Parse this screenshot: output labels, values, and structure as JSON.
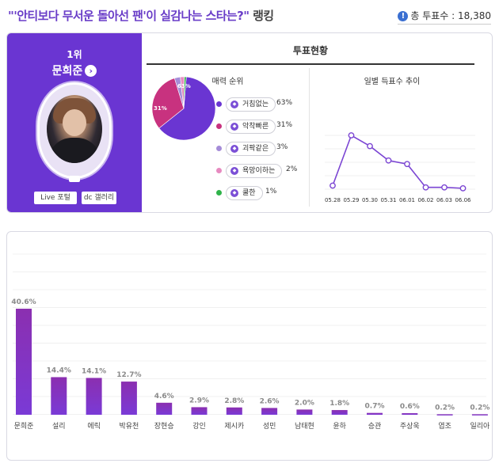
{
  "header": {
    "title_main": "\"'안티보다 무서운 돌아선 팬'이 실감나는 스타는?\"",
    "title_tail": "랭킹",
    "total_label": "총 투표수 : 18,380",
    "info_icon": "info-icon"
  },
  "winner": {
    "rank": "1위",
    "name": "문희준",
    "go_icon": "chevron-right-icon",
    "live_label": "Live 포털",
    "dc_label": "dc 갤러리"
  },
  "status": {
    "title": "투표현황",
    "charm_title": "매력 순위",
    "daily_title": "일별 득표수 추이"
  },
  "colors": {
    "purple": "#6a35d2",
    "pink": "#c8327f",
    "lavender": "#a58cd8",
    "lightpink": "#e78ac0",
    "green": "#2fb34a",
    "bar_top": "#8b2fb0",
    "bar_bottom": "#7a3ad6"
  },
  "chart_data": [
    {
      "type": "pie",
      "title": "매력 순위",
      "slices": [
        {
          "label": "거침없는",
          "value": 63,
          "pct_text": "63%",
          "color": "#6a35d2"
        },
        {
          "label": "악착빠른",
          "value": 31,
          "pct_text": "31%",
          "color": "#c8327f"
        },
        {
          "label": "괴팍같은",
          "value": 3,
          "pct_text": "3%",
          "color": "#a58cd8"
        },
        {
          "label": "욕망이하는",
          "value": 2,
          "pct_text": "2%",
          "color": "#e78ac0"
        },
        {
          "label": "쿨한",
          "value": 1,
          "pct_text": "1%",
          "color": "#2fb34a"
        }
      ],
      "inner_labels": [
        "31%",
        "63%"
      ]
    },
    {
      "type": "line",
      "title": "일별 득표수 추이",
      "x": [
        "05.28",
        "05.29",
        "05.30",
        "05.31",
        "06.01",
        "06.02",
        "06.03",
        "06.06"
      ],
      "y": [
        2,
        30,
        24,
        16,
        14,
        1,
        1,
        0.5
      ]
    },
    {
      "type": "bar",
      "categories": [
        "문희준",
        "설리",
        "에릭",
        "박유천",
        "장현승",
        "강인",
        "제시카",
        "성민",
        "남태현",
        "윤하",
        "승관",
        "주상욱",
        "엽조",
        "일리아"
      ],
      "values": [
        40.6,
        14.4,
        14.1,
        12.7,
        4.6,
        2.9,
        2.8,
        2.6,
        2.0,
        1.8,
        0.7,
        0.6,
        0.2,
        0.2
      ],
      "value_labels": [
        "40.6%",
        "14.4%",
        "14.1%",
        "12.7%",
        "4.6%",
        "2.9%",
        "2.8%",
        "2.6%",
        "2.0%",
        "1.8%",
        "0.7%",
        "0.6%",
        "0.2%",
        "0.2%"
      ],
      "ylim": [
        0,
        50
      ],
      "grid": true
    }
  ]
}
